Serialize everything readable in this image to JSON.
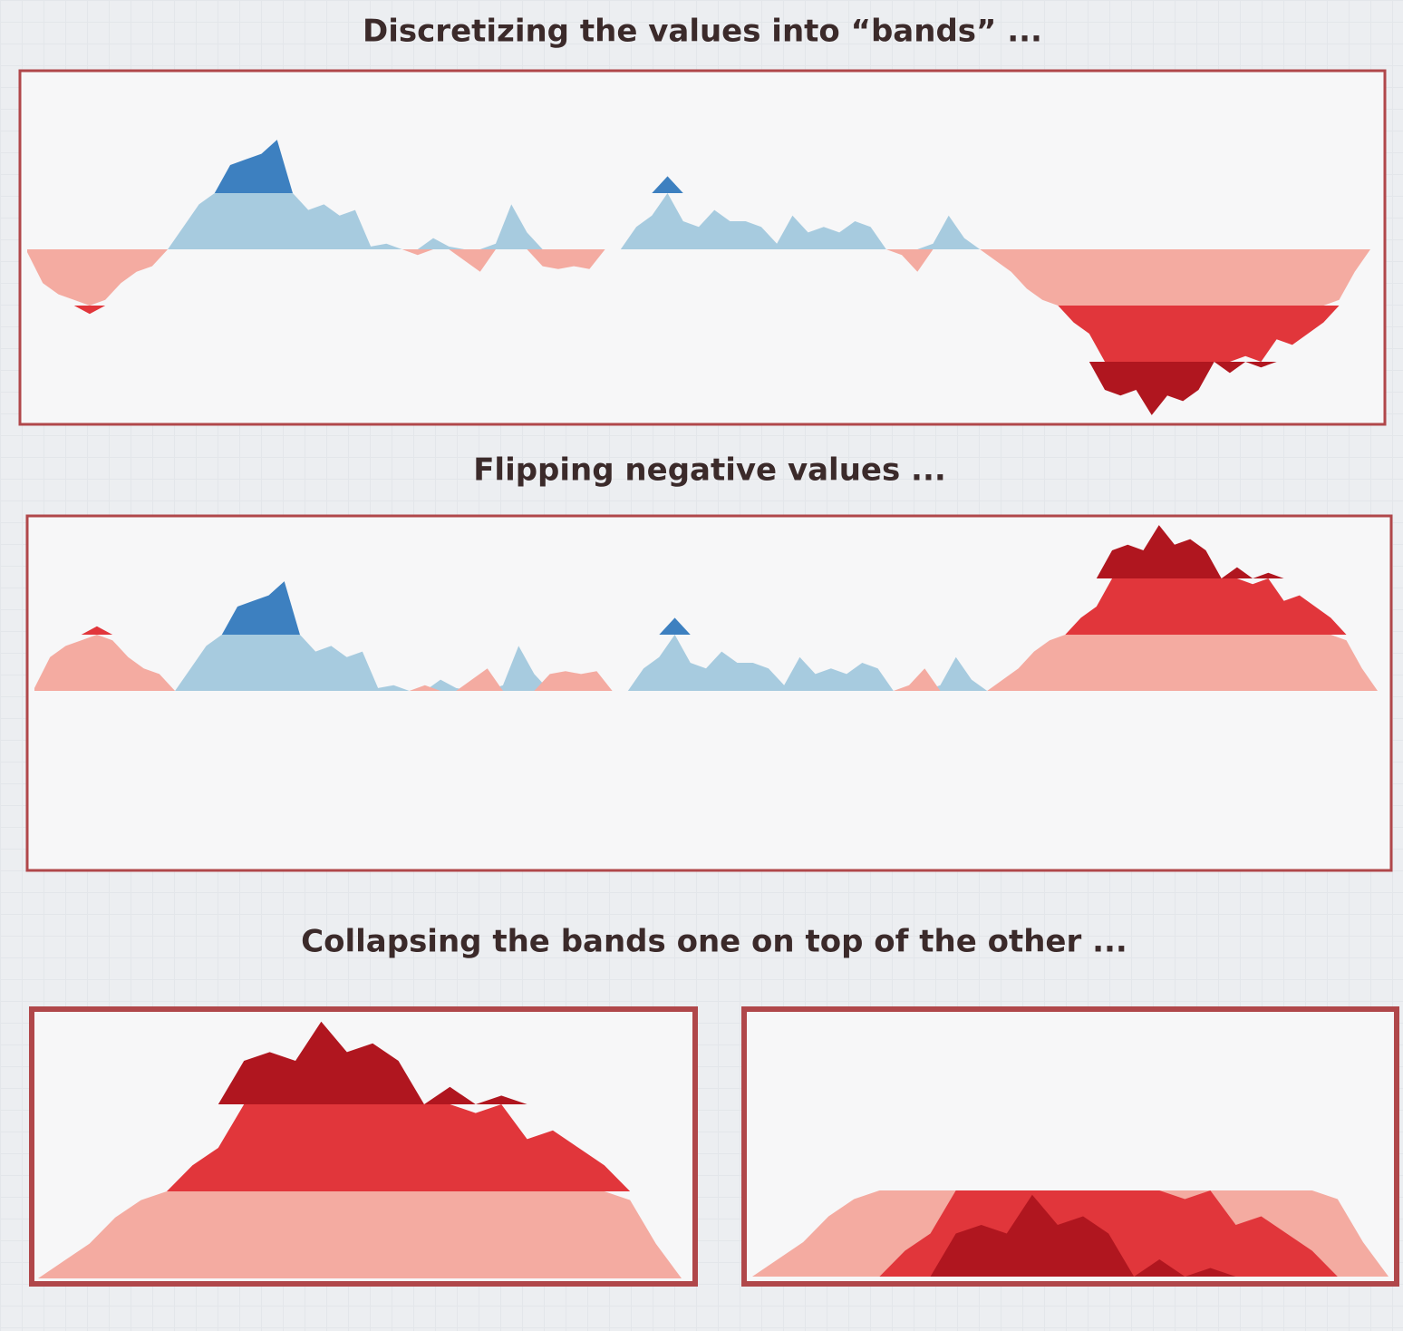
{
  "chart_data": [
    {
      "type": "horizon",
      "mode": "banded",
      "title": "Discretizing the values into “bands” ...",
      "band_size": 1,
      "colors": {
        "positive": [
          "#a7cbdf",
          "#3d80c0",
          "#1f5a9a"
        ],
        "negative": [
          "#f4aba1",
          "#e1363b",
          "#b0161f"
        ]
      },
      "values": [
        -0.05,
        -0.6,
        -0.8,
        -0.9,
        -1.15,
        -0.9,
        -0.6,
        -0.4,
        -0.3,
        0,
        0.4,
        0.8,
        1.0,
        1.5,
        1.6,
        1.7,
        1.95,
        1.0,
        0.7,
        0.8,
        0.6,
        0.7,
        0.05,
        0.1,
        0.0,
        -0.1,
        0.2,
        0.05,
        -0.2,
        -0.4,
        0.1,
        0.8,
        0.3,
        -0.3,
        -0.35,
        -0.3,
        -0.35,
        0.0,
        0.0,
        0.4,
        0.6,
        1.3,
        0.5,
        0.4,
        0.7,
        0.5,
        0.5,
        0.4,
        0.1,
        0.6,
        0.3,
        0.4,
        0.3,
        0.5,
        0.4,
        0.0,
        -0.1,
        -0.4,
        0.1,
        0.6,
        0.2,
        0.0,
        -0.2,
        -0.4,
        -0.7,
        -0.9,
        -1.0,
        -1.3,
        -1.5,
        -2.5,
        -2.6,
        -2.5,
        -2.95,
        -2.6,
        -2.7,
        -2.5,
        -2.0,
        -2.2,
        -1.9,
        -2.1,
        -1.6,
        -1.7,
        -1.5,
        -1.3,
        -0.9,
        -0.4,
        0.0
      ]
    },
    {
      "type": "horizon",
      "mode": "flipped",
      "title": "Flipping negative values ...",
      "band_size": 1,
      "colors": {
        "positive": [
          "#a7cbdf",
          "#3d80c0",
          "#1f5a9a"
        ],
        "negative": [
          "#f4aba1",
          "#e1363b",
          "#b0161f"
        ]
      },
      "values": [
        -0.05,
        -0.6,
        -0.8,
        -0.9,
        -1.15,
        -0.9,
        -0.6,
        -0.4,
        -0.3,
        0,
        0.4,
        0.8,
        1.0,
        1.5,
        1.6,
        1.7,
        1.95,
        1.0,
        0.7,
        0.8,
        0.6,
        0.7,
        0.05,
        0.1,
        0.0,
        -0.1,
        0.2,
        0.05,
        -0.2,
        -0.4,
        0.1,
        0.8,
        0.3,
        -0.3,
        -0.35,
        -0.3,
        -0.35,
        0.0,
        0.0,
        0.4,
        0.6,
        1.3,
        0.5,
        0.4,
        0.7,
        0.5,
        0.5,
        0.4,
        0.1,
        0.6,
        0.3,
        0.4,
        0.3,
        0.5,
        0.4,
        0.0,
        -0.1,
        -0.4,
        0.1,
        0.6,
        0.2,
        0.0,
        -0.2,
        -0.4,
        -0.7,
        -0.9,
        -1.0,
        -1.3,
        -1.5,
        -2.5,
        -2.6,
        -2.5,
        -2.95,
        -2.6,
        -2.7,
        -2.5,
        -2.0,
        -2.2,
        -1.9,
        -2.1,
        -1.6,
        -1.7,
        -1.5,
        -1.3,
        -0.9,
        -0.4,
        0.0
      ]
    },
    {
      "type": "horizon",
      "mode": "stacked",
      "title": "Collapsing the bands one on top of the other ...",
      "band_size": 1,
      "colors": {
        "positive": [
          "#f4aba1",
          "#e1363b",
          "#b0161f"
        ]
      },
      "values": [
        0.0,
        0.2,
        0.4,
        0.7,
        0.9,
        1.0,
        1.3,
        1.5,
        2.5,
        2.6,
        2.5,
        2.95,
        2.6,
        2.7,
        2.5,
        2.0,
        2.2,
        1.9,
        2.1,
        1.6,
        1.7,
        1.5,
        1.3,
        0.9,
        0.4,
        0.0
      ]
    },
    {
      "type": "horizon",
      "mode": "collapsed",
      "band_size": 1,
      "colors": {
        "positive": [
          "#f4aba1",
          "#e1363b",
          "#b0161f"
        ]
      },
      "values": [
        0.0,
        0.2,
        0.4,
        0.7,
        0.9,
        1.0,
        1.3,
        1.5,
        2.5,
        2.6,
        2.5,
        2.95,
        2.6,
        2.7,
        2.5,
        2.0,
        2.2,
        1.9,
        2.1,
        1.6,
        1.7,
        1.5,
        1.3,
        0.9,
        0.4,
        0.0
      ]
    }
  ]
}
